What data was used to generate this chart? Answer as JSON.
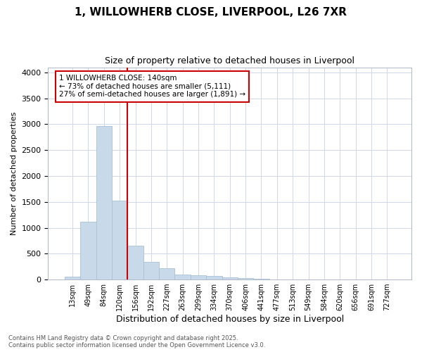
{
  "title_line1": "1, WILLOWHERB CLOSE, LIVERPOOL, L26 7XR",
  "title_line2": "Size of property relative to detached houses in Liverpool",
  "xlabel": "Distribution of detached houses by size in Liverpool",
  "ylabel": "Number of detached properties",
  "bin_labels": [
    "13sqm",
    "49sqm",
    "84sqm",
    "120sqm",
    "156sqm",
    "192sqm",
    "227sqm",
    "263sqm",
    "299sqm",
    "334sqm",
    "370sqm",
    "406sqm",
    "441sqm",
    "477sqm",
    "513sqm",
    "549sqm",
    "584sqm",
    "620sqm",
    "656sqm",
    "691sqm",
    "727sqm"
  ],
  "bar_values": [
    55,
    1110,
    2970,
    1520,
    650,
    340,
    215,
    90,
    85,
    75,
    45,
    30,
    10,
    5,
    2,
    1,
    0,
    0,
    0,
    0,
    0
  ],
  "bar_color": "#c8daea",
  "bar_edgecolor": "#a8c0d8",
  "grid_color": "#d0d8e8",
  "vline_color": "#cc0000",
  "vline_position": 3.5,
  "annotation_text_line1": "1 WILLOWHERB CLOSE: 140sqm",
  "annotation_text_line2": "← 73% of detached houses are smaller (5,111)",
  "annotation_text_line3": "27% of semi-detached houses are larger (1,891) →",
  "annotation_box_edgecolor": "#cc0000",
  "ylim": [
    0,
    4100
  ],
  "yticks": [
    0,
    500,
    1000,
    1500,
    2000,
    2500,
    3000,
    3500,
    4000
  ],
  "background_color": "#ffffff",
  "footer_line1": "Contains HM Land Registry data © Crown copyright and database right 2025.",
  "footer_line2": "Contains public sector information licensed under the Open Government Licence v3.0."
}
